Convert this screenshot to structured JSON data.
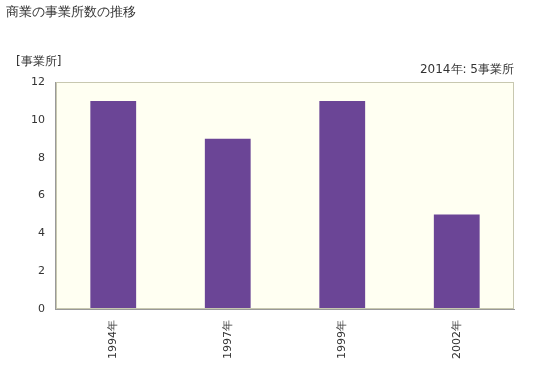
{
  "chart_data": {
    "type": "bar",
    "title": "商業の事業所数の推移",
    "ylabel": "[事業所]",
    "annotations": [
      "2014年: 5事業所"
    ],
    "categories": [
      "1994年",
      "1997年",
      "1999年",
      "2002年"
    ],
    "values": [
      11,
      9,
      11,
      5
    ],
    "color": "#6b4596",
    "ylim": [
      0,
      12
    ],
    "yticks": [
      0,
      2,
      4,
      6,
      8,
      10,
      12
    ],
    "grid": false
  }
}
